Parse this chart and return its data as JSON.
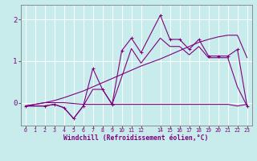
{
  "xlabel": "Windchill (Refroidissement éolien,°C)",
  "bg_color": "#c8ecec",
  "line_color": "#800080",
  "grid_color": "#ffffff",
  "x_ticks": [
    0,
    1,
    2,
    3,
    4,
    5,
    6,
    7,
    8,
    9,
    10,
    11,
    12,
    14,
    15,
    16,
    17,
    18,
    19,
    20,
    21,
    22,
    23
  ],
  "y_ticks": [
    0,
    1,
    2
  ],
  "xlim": [
    -0.5,
    23.5
  ],
  "ylim": [
    -0.55,
    2.35
  ],
  "series": [
    {
      "x": [
        0,
        1,
        2,
        3,
        4,
        5,
        6,
        7,
        8,
        9,
        10,
        11,
        12,
        14,
        15,
        16,
        17,
        18,
        19,
        20,
        21,
        22,
        23
      ],
      "y": [
        -0.08,
        -0.04,
        0.0,
        0.05,
        0.12,
        0.2,
        0.28,
        0.38,
        0.48,
        0.58,
        0.68,
        0.78,
        0.88,
        1.05,
        1.15,
        1.25,
        1.35,
        1.45,
        1.52,
        1.58,
        1.62,
        1.62,
        1.08
      ],
      "marker": null,
      "linewidth": 0.8
    },
    {
      "x": [
        0,
        1,
        2,
        3,
        4,
        5,
        6,
        7,
        8,
        9,
        10,
        11,
        12,
        14,
        15,
        16,
        17,
        18,
        19,
        20,
        21,
        22,
        23
      ],
      "y": [
        -0.08,
        -0.04,
        0.0,
        0.0,
        0.0,
        -0.02,
        -0.04,
        -0.04,
        -0.04,
        -0.04,
        -0.04,
        -0.04,
        -0.04,
        -0.04,
        -0.04,
        -0.04,
        -0.04,
        -0.04,
        -0.04,
        -0.04,
        -0.04,
        -0.08,
        -0.04
      ],
      "marker": null,
      "linewidth": 0.8
    },
    {
      "x": [
        0,
        2,
        3,
        4,
        5,
        6,
        7,
        8,
        9,
        10,
        11,
        12,
        14,
        15,
        16,
        17,
        18,
        19,
        20,
        21,
        22,
        23
      ],
      "y": [
        -0.08,
        -0.08,
        -0.04,
        -0.12,
        -0.38,
        -0.08,
        0.82,
        0.32,
        -0.04,
        1.25,
        1.55,
        1.2,
        2.1,
        1.52,
        1.52,
        1.28,
        1.52,
        1.12,
        1.12,
        1.12,
        1.28,
        -0.08
      ],
      "marker": "+",
      "linewidth": 0.8
    },
    {
      "x": [
        0,
        2,
        3,
        4,
        5,
        6,
        7,
        8,
        9,
        10,
        11,
        12,
        14,
        15,
        16,
        17,
        18,
        19,
        20,
        21,
        22,
        23
      ],
      "y": [
        -0.08,
        -0.08,
        -0.04,
        -0.12,
        -0.38,
        -0.08,
        0.32,
        0.32,
        -0.04,
        0.62,
        1.3,
        0.95,
        1.55,
        1.35,
        1.35,
        1.15,
        1.35,
        1.08,
        1.08,
        1.08,
        0.38,
        -0.08
      ],
      "marker": null,
      "linewidth": 0.8
    }
  ]
}
